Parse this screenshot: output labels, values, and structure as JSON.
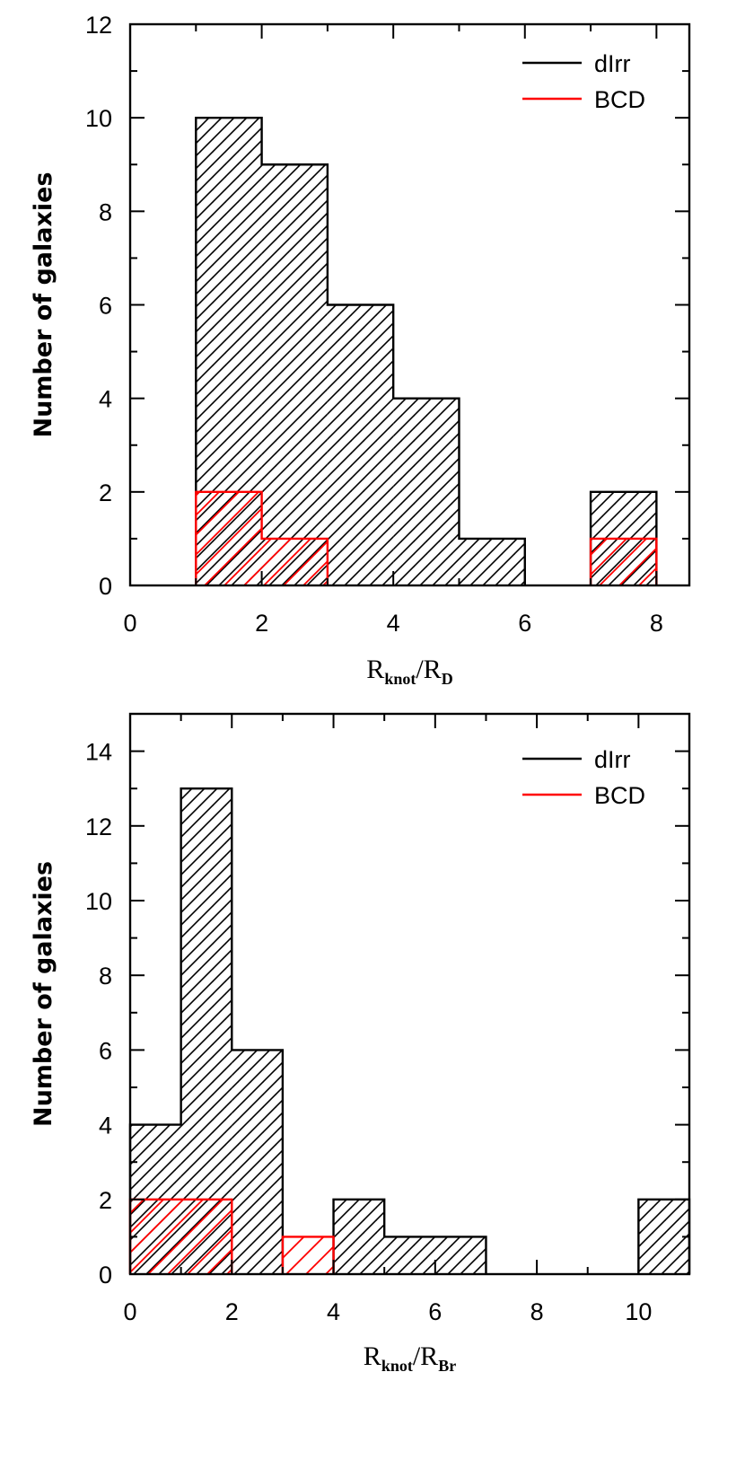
{
  "colors": {
    "dirr": "#000000",
    "bcd": "#ff0000",
    "background": "#ffffff"
  },
  "chart_data": [
    {
      "type": "bar",
      "subtype": "histogram",
      "xlabel_main": "R",
      "xlabel_sub1": "knot",
      "xlabel_slash": "/",
      "xlabel_main2": "R",
      "xlabel_sub2": "D",
      "ylabel": "Number of galaxies",
      "xlim": [
        0,
        8.5
      ],
      "ylim": [
        0,
        12
      ],
      "xticks": [
        0,
        2,
        4,
        6,
        8
      ],
      "yticks": [
        0,
        2,
        4,
        6,
        8,
        10,
        12
      ],
      "legend_position": "top-right",
      "series": [
        {
          "name": "dIrr",
          "color": "#000000",
          "bins": [
            [
              1,
              2,
              10
            ],
            [
              2,
              3,
              9
            ],
            [
              3,
              4,
              6
            ],
            [
              4,
              5,
              4
            ],
            [
              5,
              6,
              1
            ],
            [
              7,
              8,
              2
            ]
          ]
        },
        {
          "name": "BCD",
          "color": "#ff0000",
          "bins": [
            [
              1,
              2,
              2
            ],
            [
              2,
              3,
              1
            ],
            [
              7,
              8,
              1
            ]
          ]
        }
      ]
    },
    {
      "type": "bar",
      "subtype": "histogram",
      "xlabel_main": "R",
      "xlabel_sub1": "knot",
      "xlabel_slash": "/",
      "xlabel_main2": "R",
      "xlabel_sub2": "Br",
      "ylabel": "Number of galaxies",
      "xlim": [
        0,
        11
      ],
      "ylim": [
        0,
        15
      ],
      "xticks": [
        0,
        2,
        4,
        6,
        8,
        10
      ],
      "yticks": [
        0,
        2,
        4,
        6,
        8,
        10,
        12,
        14
      ],
      "legend_position": "top-right",
      "series": [
        {
          "name": "dIrr",
          "color": "#000000",
          "bins": [
            [
              0,
              1,
              4
            ],
            [
              1,
              2,
              13
            ],
            [
              2,
              3,
              6
            ],
            [
              4,
              5,
              2
            ],
            [
              5,
              6,
              1
            ],
            [
              6,
              7,
              1
            ],
            [
              10,
              11,
              2
            ]
          ]
        },
        {
          "name": "BCD",
          "color": "#ff0000",
          "bins": [
            [
              0,
              1,
              2
            ],
            [
              1,
              2,
              2
            ],
            [
              3,
              4,
              1
            ]
          ]
        }
      ]
    }
  ]
}
